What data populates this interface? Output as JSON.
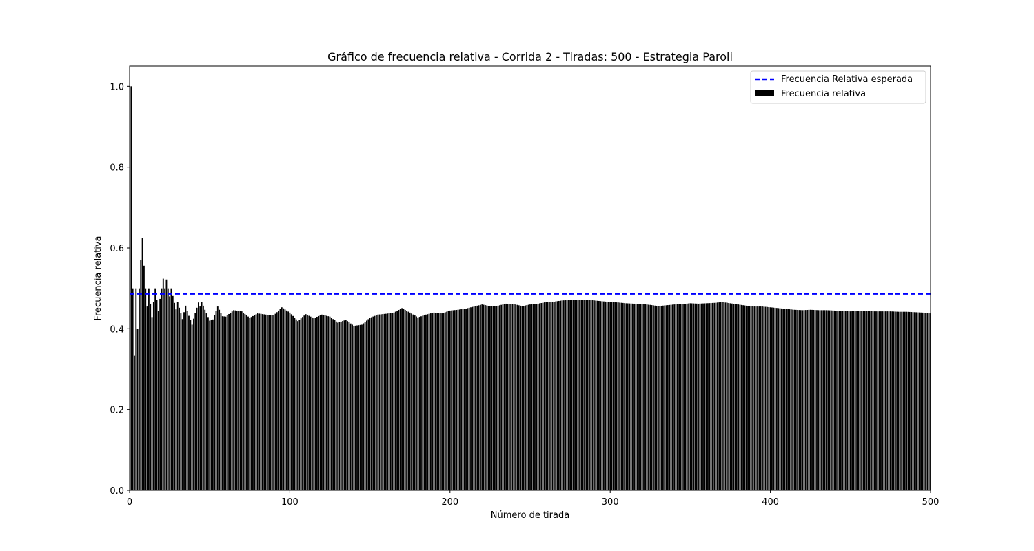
{
  "chart_data": {
    "type": "bar",
    "title": "Gráfico de frecuencia relativa - Corrida 2 - Tiradas: 500 - Estrategia Paroli",
    "xlabel": "Número de tirada",
    "ylabel": "Frecuencia relativa",
    "xlim": [
      0,
      500
    ],
    "ylim": [
      0,
      1.05
    ],
    "xticks": [
      0,
      100,
      200,
      300,
      400,
      500
    ],
    "yticks": [
      0.0,
      0.2,
      0.4,
      0.6,
      0.8,
      1.0
    ],
    "xtick_labels": [
      "0",
      "100",
      "200",
      "300",
      "400",
      "500"
    ],
    "ytick_labels": [
      "0.0",
      "0.2",
      "0.4",
      "0.6",
      "0.8",
      "1.0"
    ],
    "grid": false,
    "legend_position": "top-right",
    "reference_line": {
      "name": "Frecuencia Relativa esperada",
      "value": 0.4865,
      "style": "dashed",
      "color": "#0000ff"
    },
    "series": [
      {
        "name": "Frecuencia relativa",
        "color": "#000000",
        "anchors": [
          [
            1,
            1.0
          ],
          [
            2,
            0.5
          ],
          [
            3,
            0.333
          ],
          [
            4,
            0.5
          ],
          [
            5,
            0.4
          ],
          [
            6,
            0.5
          ],
          [
            7,
            0.571
          ],
          [
            8,
            0.625
          ],
          [
            9,
            0.556
          ],
          [
            10,
            0.5
          ],
          [
            11,
            0.455
          ],
          [
            12,
            0.5
          ],
          [
            13,
            0.462
          ],
          [
            14,
            0.429
          ],
          [
            15,
            0.467
          ],
          [
            16,
            0.5
          ],
          [
            17,
            0.471
          ],
          [
            18,
            0.444
          ],
          [
            19,
            0.474
          ],
          [
            20,
            0.5
          ],
          [
            21,
            0.524
          ],
          [
            22,
            0.5
          ],
          [
            23,
            0.522
          ],
          [
            24,
            0.5
          ],
          [
            25,
            0.48
          ],
          [
            26,
            0.5
          ],
          [
            27,
            0.481
          ],
          [
            28,
            0.464
          ],
          [
            29,
            0.448
          ],
          [
            30,
            0.467
          ],
          [
            31,
            0.452
          ],
          [
            32,
            0.438
          ],
          [
            33,
            0.424
          ],
          [
            34,
            0.441
          ],
          [
            35,
            0.457
          ],
          [
            36,
            0.444
          ],
          [
            37,
            0.432
          ],
          [
            38,
            0.421
          ],
          [
            39,
            0.41
          ],
          [
            40,
            0.425
          ],
          [
            41,
            0.439
          ],
          [
            42,
            0.452
          ],
          [
            43,
            0.465
          ],
          [
            44,
            0.455
          ],
          [
            45,
            0.467
          ],
          [
            46,
            0.457
          ],
          [
            47,
            0.447
          ],
          [
            48,
            0.438
          ],
          [
            49,
            0.429
          ],
          [
            50,
            0.42
          ],
          [
            52,
            0.423
          ],
          [
            55,
            0.455
          ],
          [
            58,
            0.431
          ],
          [
            60,
            0.43
          ],
          [
            65,
            0.446
          ],
          [
            70,
            0.443
          ],
          [
            75,
            0.427
          ],
          [
            80,
            0.438
          ],
          [
            85,
            0.435
          ],
          [
            90,
            0.433
          ],
          [
            95,
            0.453
          ],
          [
            100,
            0.44
          ],
          [
            105,
            0.419
          ],
          [
            110,
            0.436
          ],
          [
            115,
            0.426
          ],
          [
            120,
            0.435
          ],
          [
            125,
            0.43
          ],
          [
            130,
            0.415
          ],
          [
            135,
            0.422
          ],
          [
            140,
            0.407
          ],
          [
            145,
            0.41
          ],
          [
            150,
            0.427
          ],
          [
            155,
            0.435
          ],
          [
            160,
            0.437
          ],
          [
            165,
            0.44
          ],
          [
            170,
            0.451
          ],
          [
            175,
            0.44
          ],
          [
            180,
            0.428
          ],
          [
            185,
            0.435
          ],
          [
            190,
            0.44
          ],
          [
            195,
            0.438
          ],
          [
            200,
            0.445
          ],
          [
            205,
            0.447
          ],
          [
            210,
            0.45
          ],
          [
            215,
            0.455
          ],
          [
            220,
            0.46
          ],
          [
            225,
            0.456
          ],
          [
            230,
            0.457
          ],
          [
            235,
            0.462
          ],
          [
            240,
            0.461
          ],
          [
            245,
            0.456
          ],
          [
            250,
            0.46
          ],
          [
            255,
            0.462
          ],
          [
            260,
            0.466
          ],
          [
            265,
            0.467
          ],
          [
            270,
            0.47
          ],
          [
            275,
            0.471
          ],
          [
            280,
            0.472
          ],
          [
            285,
            0.472
          ],
          [
            290,
            0.47
          ],
          [
            295,
            0.468
          ],
          [
            300,
            0.466
          ],
          [
            305,
            0.465
          ],
          [
            310,
            0.463
          ],
          [
            315,
            0.462
          ],
          [
            320,
            0.461
          ],
          [
            325,
            0.459
          ],
          [
            330,
            0.456
          ],
          [
            335,
            0.458
          ],
          [
            340,
            0.46
          ],
          [
            345,
            0.461
          ],
          [
            350,
            0.463
          ],
          [
            355,
            0.462
          ],
          [
            360,
            0.463
          ],
          [
            365,
            0.464
          ],
          [
            370,
            0.466
          ],
          [
            375,
            0.463
          ],
          [
            380,
            0.46
          ],
          [
            385,
            0.457
          ],
          [
            390,
            0.455
          ],
          [
            395,
            0.455
          ],
          [
            400,
            0.453
          ],
          [
            405,
            0.451
          ],
          [
            410,
            0.449
          ],
          [
            415,
            0.447
          ],
          [
            420,
            0.446
          ],
          [
            425,
            0.447
          ],
          [
            430,
            0.446
          ],
          [
            435,
            0.446
          ],
          [
            440,
            0.445
          ],
          [
            445,
            0.444
          ],
          [
            450,
            0.443
          ],
          [
            455,
            0.444
          ],
          [
            460,
            0.444
          ],
          [
            465,
            0.443
          ],
          [
            470,
            0.443
          ],
          [
            475,
            0.443
          ],
          [
            480,
            0.442
          ],
          [
            485,
            0.442
          ],
          [
            490,
            0.441
          ],
          [
            495,
            0.44
          ],
          [
            500,
            0.438
          ]
        ]
      }
    ]
  }
}
